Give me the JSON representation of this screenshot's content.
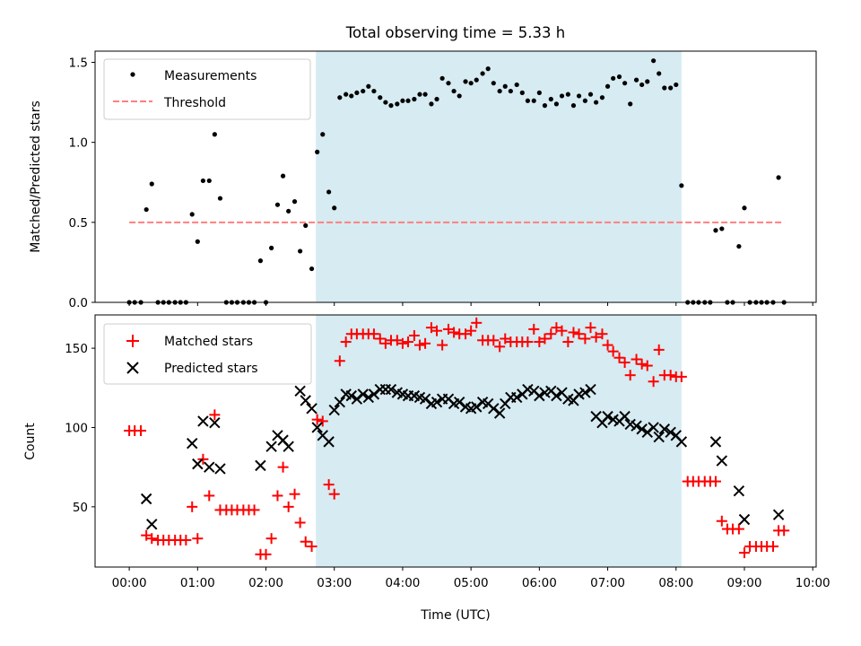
{
  "chart_data": [
    {
      "type": "scatter",
      "title": "Total observing time = 5.33 h",
      "xlabel": "",
      "ylabel": "Matched/Predicted stars",
      "xlim": [
        -0.5,
        10.05
      ],
      "ylim": [
        0,
        1.57
      ],
      "yticks": [
        0.0,
        0.5,
        1.0,
        1.5
      ],
      "ytick_labels": [
        "0.0",
        "0.5",
        "1.0",
        "1.5"
      ],
      "shaded_span": {
        "start": 2.73,
        "end": 8.08,
        "color": "#add8e6"
      },
      "legend": {
        "position": "upper left",
        "entries": [
          "Measurements",
          "Threshold"
        ]
      },
      "series": [
        {
          "name": "Measurements",
          "marker": "dot",
          "color": "#000000",
          "x": [
            0.0,
            0.08,
            0.17,
            0.25,
            0.33,
            0.42,
            0.5,
            0.58,
            0.67,
            0.75,
            0.83,
            0.92,
            1.0,
            1.08,
            1.17,
            1.25,
            1.33,
            1.42,
            1.5,
            1.58,
            1.67,
            1.75,
            1.83,
            1.92,
            2.0,
            2.08,
            2.17,
            2.25,
            2.33,
            2.42,
            2.5,
            2.58,
            2.67,
            2.75,
            2.83,
            2.92,
            3.0,
            3.08,
            3.17,
            3.25,
            3.33,
            3.42,
            3.5,
            3.58,
            3.67,
            3.75,
            3.83,
            3.92,
            4.0,
            4.08,
            4.17,
            4.25,
            4.33,
            4.42,
            4.5,
            4.58,
            4.67,
            4.75,
            4.83,
            4.92,
            5.0,
            5.08,
            5.17,
            5.25,
            5.33,
            5.42,
            5.5,
            5.58,
            5.67,
            5.75,
            5.83,
            5.92,
            6.0,
            6.08,
            6.17,
            6.25,
            6.33,
            6.42,
            6.5,
            6.58,
            6.67,
            6.75,
            6.83,
            6.92,
            7.0,
            7.08,
            7.17,
            7.25,
            7.33,
            7.42,
            7.5,
            7.58,
            7.67,
            7.75,
            7.83,
            7.92,
            8.0,
            8.08,
            8.17,
            8.25,
            8.33,
            8.42,
            8.5,
            8.58,
            8.67,
            8.75,
            8.83,
            8.92,
            9.0,
            9.08,
            9.17,
            9.25,
            9.33,
            9.42,
            9.5,
            9.58
          ],
          "y": [
            0.0,
            0.0,
            0.0,
            0.58,
            0.74,
            0.0,
            0.0,
            0.0,
            0.0,
            0.0,
            0.0,
            0.55,
            0.38,
            0.76,
            0.76,
            1.05,
            0.65,
            0.0,
            0.0,
            0.0,
            0.0,
            0.0,
            0.0,
            0.26,
            0.0,
            0.34,
            0.61,
            0.79,
            0.57,
            0.63,
            0.32,
            0.48,
            0.21,
            0.94,
            1.05,
            0.69,
            0.59,
            1.28,
            1.3,
            1.29,
            1.31,
            1.32,
            1.35,
            1.32,
            1.28,
            1.25,
            1.23,
            1.24,
            1.26,
            1.26,
            1.27,
            1.3,
            1.3,
            1.24,
            1.27,
            1.4,
            1.37,
            1.32,
            1.29,
            1.38,
            1.37,
            1.39,
            1.43,
            1.46,
            1.37,
            1.32,
            1.35,
            1.32,
            1.36,
            1.31,
            1.26,
            1.26,
            1.31,
            1.23,
            1.27,
            1.24,
            1.29,
            1.3,
            1.23,
            1.29,
            1.26,
            1.3,
            1.25,
            1.28,
            1.35,
            1.4,
            1.41,
            1.37,
            1.24,
            1.39,
            1.36,
            1.38,
            1.51,
            1.43,
            1.34,
            1.34,
            1.36,
            0.73,
            0.0,
            0.0,
            0.0,
            0.0,
            0.0,
            0.45,
            0.46,
            0.0,
            0.0,
            0.35,
            0.59,
            0.0,
            0.0,
            0.0,
            0.0,
            0.0,
            0.78,
            0.0
          ]
        },
        {
          "name": "Threshold",
          "style": "dashed",
          "color": "#ff7f7f",
          "x": [
            0.0,
            9.58
          ],
          "y": [
            0.5,
            0.5
          ]
        }
      ]
    },
    {
      "type": "scatter",
      "xlabel": "Time (UTC)",
      "ylabel": "Count",
      "xlim": [
        -0.5,
        10.05
      ],
      "ylim": [
        12,
        171
      ],
      "xticks": [
        0,
        1,
        2,
        3,
        4,
        5,
        6,
        7,
        8,
        9,
        10
      ],
      "xtick_labels": [
        "00:00",
        "01:00",
        "02:00",
        "03:00",
        "04:00",
        "05:00",
        "06:00",
        "07:00",
        "08:00",
        "09:00",
        "10:00"
      ],
      "yticks": [
        50,
        100,
        150
      ],
      "ytick_labels": [
        "50",
        "100",
        "150"
      ],
      "shaded_span": {
        "start": 2.73,
        "end": 8.08,
        "color": "#add8e6"
      },
      "legend": {
        "position": "upper left",
        "entries": [
          "Matched stars",
          "Predicted stars"
        ]
      },
      "series": [
        {
          "name": "Matched stars",
          "marker": "plus",
          "color": "#ff0000",
          "x": [
            0.0,
            0.08,
            0.17,
            0.25,
            0.33,
            0.42,
            0.5,
            0.58,
            0.67,
            0.75,
            0.83,
            0.92,
            1.0,
            1.08,
            1.17,
            1.25,
            1.33,
            1.42,
            1.5,
            1.58,
            1.67,
            1.75,
            1.83,
            1.92,
            2.0,
            2.08,
            2.17,
            2.25,
            2.33,
            2.42,
            2.5,
            2.58,
            2.67,
            2.75,
            2.83,
            2.92,
            3.0,
            3.08,
            3.17,
            3.25,
            3.33,
            3.42,
            3.5,
            3.58,
            3.67,
            3.75,
            3.83,
            3.92,
            4.0,
            4.08,
            4.17,
            4.25,
            4.33,
            4.42,
            4.5,
            4.58,
            4.67,
            4.75,
            4.83,
            4.92,
            5.0,
            5.08,
            5.17,
            5.25,
            5.33,
            5.42,
            5.5,
            5.58,
            5.67,
            5.75,
            5.83,
            5.92,
            6.0,
            6.08,
            6.17,
            6.25,
            6.33,
            6.42,
            6.5,
            6.58,
            6.67,
            6.75,
            6.83,
            6.92,
            7.0,
            7.08,
            7.17,
            7.25,
            7.33,
            7.42,
            7.5,
            7.58,
            7.67,
            7.75,
            7.83,
            7.92,
            8.0,
            8.08,
            8.17,
            8.25,
            8.33,
            8.42,
            8.5,
            8.58,
            8.67,
            8.75,
            8.83,
            8.92,
            9.0,
            9.08,
            9.17,
            9.25,
            9.33,
            9.42,
            9.5,
            9.58
          ],
          "y": [
            98,
            98,
            98,
            32,
            30,
            29,
            29,
            29,
            29,
            29,
            29,
            50,
            30,
            80,
            57,
            108,
            48,
            48,
            48,
            48,
            48,
            48,
            48,
            20,
            20,
            30,
            57,
            75,
            50,
            58,
            40,
            28,
            25,
            105,
            104,
            64,
            58,
            142,
            154,
            159,
            159,
            159,
            159,
            159,
            156,
            153,
            155,
            155,
            153,
            154,
            158,
            152,
            153,
            163,
            161,
            152,
            162,
            160,
            159,
            159,
            161,
            166,
            155,
            155,
            155,
            151,
            156,
            154,
            154,
            154,
            154,
            162,
            154,
            156,
            159,
            163,
            161,
            154,
            160,
            159,
            156,
            163,
            157,
            159,
            152,
            148,
            144,
            141,
            133,
            143,
            140,
            139,
            129,
            149,
            133,
            133,
            132,
            132,
            66,
            66,
            66,
            66,
            66,
            66,
            41,
            36,
            36,
            36,
            21,
            25,
            25,
            25,
            25,
            25,
            35,
            35
          ]
        },
        {
          "name": "Predicted stars",
          "marker": "x",
          "color": "#000000",
          "x": [
            0.25,
            0.33,
            0.92,
            1.0,
            1.08,
            1.17,
            1.25,
            1.33,
            1.92,
            2.08,
            2.17,
            2.25,
            2.33,
            2.5,
            2.58,
            2.67,
            2.75,
            2.83,
            2.92,
            3.0,
            3.08,
            3.17,
            3.25,
            3.33,
            3.42,
            3.5,
            3.58,
            3.67,
            3.75,
            3.83,
            3.92,
            4.0,
            4.08,
            4.17,
            4.25,
            4.33,
            4.42,
            4.5,
            4.58,
            4.67,
            4.75,
            4.83,
            4.92,
            5.0,
            5.08,
            5.17,
            5.25,
            5.33,
            5.42,
            5.5,
            5.58,
            5.67,
            5.75,
            5.83,
            5.92,
            6.0,
            6.08,
            6.17,
            6.25,
            6.33,
            6.42,
            6.5,
            6.58,
            6.67,
            6.75,
            6.83,
            6.92,
            7.0,
            7.08,
            7.17,
            7.25,
            7.33,
            7.42,
            7.5,
            7.58,
            7.67,
            7.75,
            7.83,
            7.92,
            8.0,
            8.08,
            8.58,
            8.67,
            8.92,
            9.0,
            9.5
          ],
          "y": [
            55,
            39,
            90,
            77,
            104,
            75,
            103,
            74,
            76,
            88,
            95,
            92,
            88,
            123,
            117,
            112,
            100,
            95,
            91,
            111,
            116,
            121,
            120,
            118,
            121,
            119,
            121,
            124,
            124,
            124,
            122,
            121,
            120,
            120,
            119,
            118,
            115,
            116,
            118,
            118,
            115,
            116,
            113,
            112,
            113,
            116,
            115,
            112,
            109,
            115,
            119,
            119,
            121,
            124,
            123,
            120,
            122,
            123,
            120,
            122,
            118,
            117,
            121,
            122,
            124,
            107,
            103,
            107,
            105,
            104,
            107,
            102,
            101,
            99,
            97,
            100,
            94,
            99,
            97,
            95,
            91,
            91,
            79,
            60,
            42,
            45
          ]
        }
      ]
    }
  ]
}
